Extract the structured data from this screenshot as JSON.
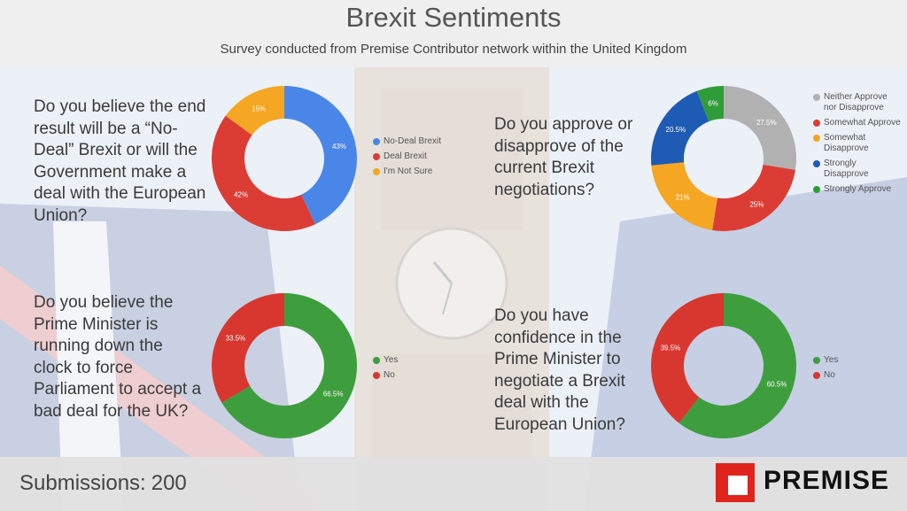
{
  "header": {
    "title": "Brexit Sentiments",
    "subtitle": "Survey conducted from Premise Contributor network within the United Kingdom"
  },
  "footer": {
    "submissions_label": "Submissions:",
    "submissions_value": "200",
    "brand": "PREMISE",
    "brand_color": "#e0231d"
  },
  "questions": [
    {
      "text": "Do you believe the end result will be a “No-Deal” Brexit or will the Government make a deal with the European Union?"
    },
    {
      "text": "Do you approve or disapprove of the current Brexit negotiations?"
    },
    {
      "text": "Do you believe the Prime Minister is running down the clock to force Parliament to accept a bad deal for the UK?"
    },
    {
      "text": "Do you have confidence in the Prime Minister to negotiate a Brexit deal with the European Union?"
    }
  ],
  "chart_data": [
    {
      "type": "pie",
      "donut": true,
      "slices": [
        {
          "label": "No-Deal Brexit",
          "value": 43,
          "display": "43%",
          "color": "#4a86e8"
        },
        {
          "label": "Deal Brexit",
          "value": 42,
          "display": "42%",
          "color": "#db3d35"
        },
        {
          "label": "I'm Not Sure",
          "value": 15,
          "display": "15%",
          "color": "#f5a623"
        }
      ],
      "legend_position": "right"
    },
    {
      "type": "pie",
      "donut": true,
      "slices": [
        {
          "label": "Neither Approve nor Disapprove",
          "value": 27.5,
          "display": "27.5%",
          "color": "#b1b1b1"
        },
        {
          "label": "Somewhat Approve",
          "value": 25,
          "display": "25%",
          "color": "#db3d35"
        },
        {
          "label": "Somewhat Disapprove",
          "value": 21,
          "display": "21%",
          "color": "#f5a623"
        },
        {
          "label": "Strongly Disapprove",
          "value": 20.5,
          "display": "20.5%",
          "color": "#1e5bb4"
        },
        {
          "label": "Strongly Approve",
          "value": 6,
          "display": "6%",
          "color": "#2f9c3a"
        }
      ],
      "legend_position": "right"
    },
    {
      "type": "pie",
      "donut": true,
      "slices": [
        {
          "label": "Yes",
          "value": 66.5,
          "display": "66.5%",
          "color": "#3e9e3e"
        },
        {
          "label": "No",
          "value": 33.5,
          "display": "33.5%",
          "color": "#d8372f"
        }
      ],
      "legend_position": "right"
    },
    {
      "type": "pie",
      "donut": true,
      "slices": [
        {
          "label": "Yes",
          "value": 60.5,
          "display": "60.5%",
          "color": "#3e9e3e"
        },
        {
          "label": "No",
          "value": 39.5,
          "display": "39.5%",
          "color": "#d8372f"
        }
      ],
      "legend_position": "right"
    }
  ]
}
